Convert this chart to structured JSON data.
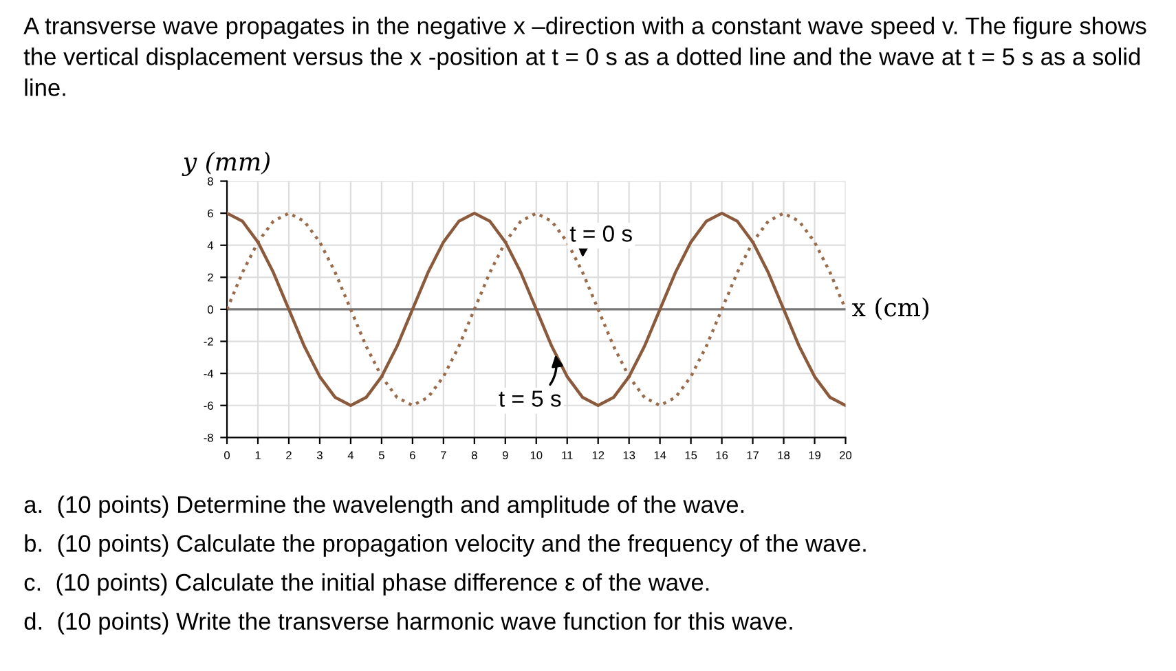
{
  "chart_data": {
    "type": "line",
    "title": "A transverse wave propagates in the negative x –direction with a constant wave speed v. The figure shows the vertical displacement versus the x -position at t = 0 s as a dotted line and the wave at t = 5 s as a solid line.",
    "xlabel": "x (cm)",
    "ylabel": "y (mm)",
    "x": [
      0,
      0.5,
      1,
      1.5,
      2,
      2.5,
      3,
      3.5,
      4,
      4.5,
      5,
      5.5,
      6,
      6.5,
      7,
      7.5,
      8,
      8.5,
      9,
      9.5,
      10,
      10.5,
      11,
      11.5,
      12,
      12.5,
      13,
      13.5,
      14,
      14.5,
      15,
      15.5,
      16,
      16.5,
      17,
      17.5,
      18,
      18.5,
      19,
      19.5,
      20
    ],
    "series": [
      {
        "color": "#9a6b4b",
        "line_style": "dotted",
        "values": [
          0,
          2.3,
          4.2,
          5.5,
          6,
          5.5,
          4.2,
          2.3,
          0,
          -2.3,
          -4.2,
          -5.5,
          -6,
          -5.5,
          -4.2,
          -2.3,
          0,
          2.3,
          4.2,
          5.5,
          6,
          5.5,
          4.2,
          2.3,
          0,
          -2.3,
          -4.2,
          -5.5,
          -6,
          -5.5,
          -4.2,
          -2.3,
          0,
          2.3,
          4.2,
          5.5,
          6,
          5.5,
          4.2,
          2.3,
          0
        ]
      },
      {
        "color": "#8b5a3c",
        "line_style": "solid",
        "values": [
          6,
          5.5,
          4.2,
          2.3,
          0,
          -2.3,
          -4.2,
          -5.5,
          -6,
          -5.5,
          -4.2,
          -2.3,
          0,
          2.3,
          4.2,
          5.5,
          6,
          5.5,
          4.2,
          2.3,
          0,
          -2.3,
          -4.2,
          -5.5,
          -6,
          -5.5,
          -4.2,
          -2.3,
          0,
          2.3,
          4.2,
          5.5,
          6,
          5.5,
          4.2,
          2.3,
          0,
          -2.3,
          -4.2,
          -5.5,
          -6
        ]
      }
    ],
    "xlim": [
      0,
      20
    ],
    "xticks": [
      0,
      1,
      2,
      3,
      4,
      5,
      6,
      7,
      8,
      9,
      10,
      11,
      12,
      13,
      14,
      15,
      16,
      17,
      18,
      19,
      20
    ],
    "ylim": [
      -8,
      8
    ],
    "yticks": [
      -8,
      -6,
      -4,
      -2,
      0,
      2,
      4,
      6,
      8
    ],
    "grid": true,
    "ref_lines": [
      {
        "axis": "y",
        "value": 0,
        "color": "#777777"
      }
    ],
    "annotations": [
      {
        "text": "t = 0 s",
        "x": 11.5,
        "y": 3
      },
      {
        "text": "t = 5 s",
        "x": 10.6,
        "y": -2.6
      },
      "a.  (10 points) Determine the wavelength and amplitude of the wave.",
      "b.  (10 points) Calculate the propagation velocity and the frequency of the wave.",
      "c.  (10 points) Calculate the initial phase difference ε of the wave.",
      "d.  (10 points) Write the transverse harmonic wave function for this wave."
    ]
  }
}
